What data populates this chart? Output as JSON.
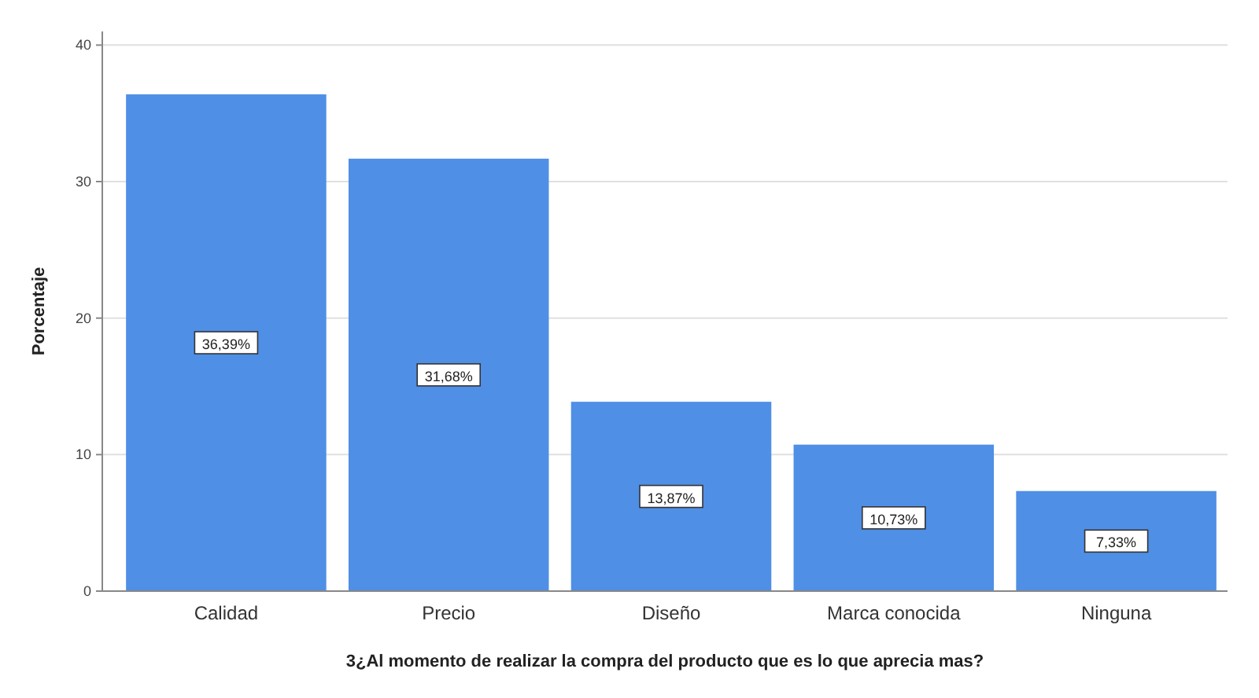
{
  "chart_data": {
    "type": "bar",
    "xlabel": "3¿Al momento de realizar la compra del producto que es lo que aprecia mas?",
    "ylabel": "Porcentaje",
    "categories": [
      "Calidad",
      "Precio",
      "Diseño",
      "Marca conocida",
      "Ninguna"
    ],
    "values": [
      36.39,
      31.68,
      13.87,
      10.73,
      7.33
    ],
    "value_labels": [
      "36,39%",
      "31,68%",
      "13,87%",
      "10,73%",
      "7,33%"
    ],
    "color": "#4f8fe6",
    "ylim": [
      0,
      41
    ],
    "yticks": [
      0,
      10,
      20,
      30,
      40
    ],
    "grid": "y"
  }
}
